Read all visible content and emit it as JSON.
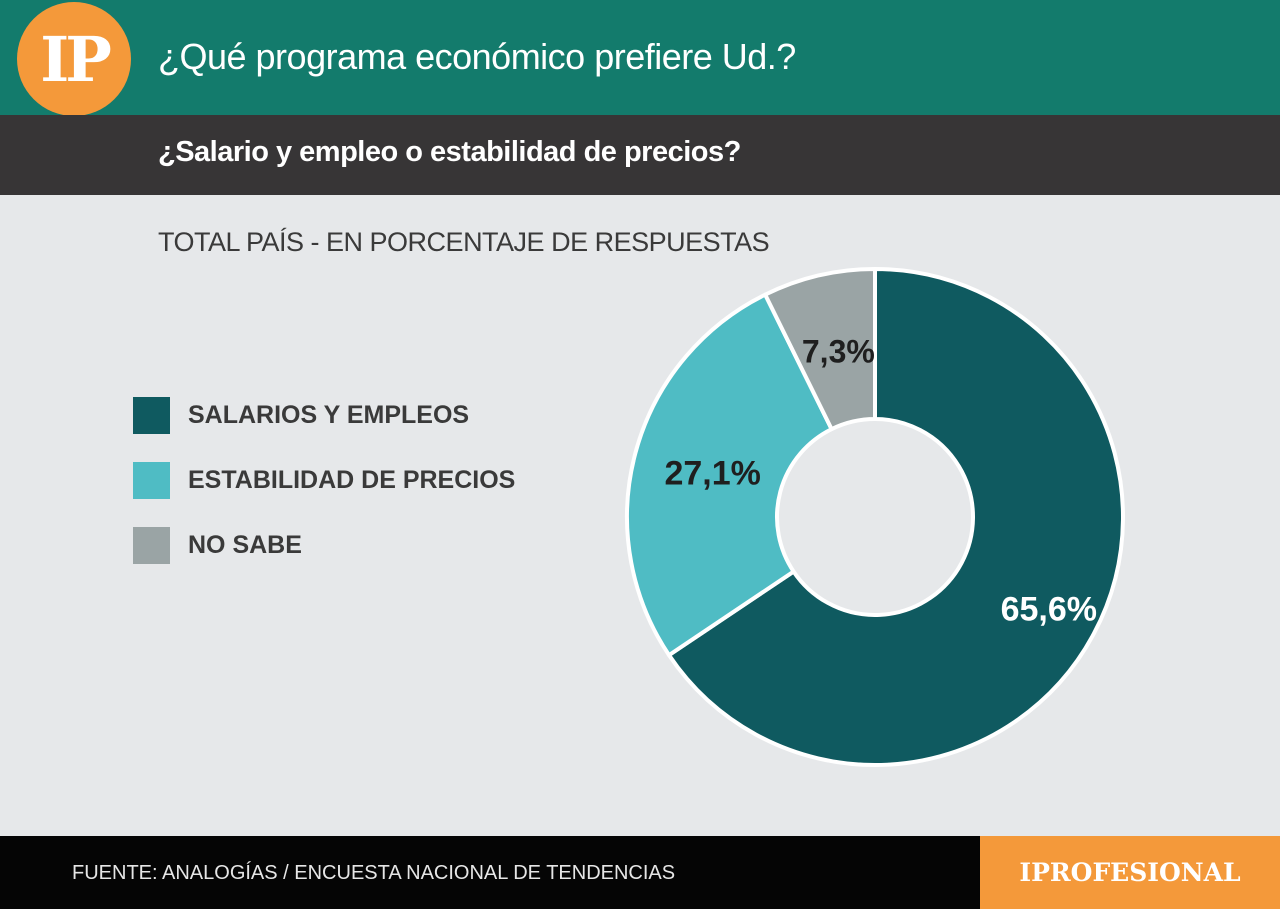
{
  "header": {
    "logo_text": "IP",
    "title": "¿Qué programa económico prefiere Ud.?",
    "subtitle": "¿Salario y empleo o estabilidad de precios?"
  },
  "chart_data": {
    "type": "pie",
    "title": "TOTAL PAÍS - EN PORCENTAJE DE RESPUESTAS",
    "donut": true,
    "legend_position": "left",
    "slices": [
      {
        "name": "SALARIOS Y EMPLEOS",
        "value": 65.6,
        "label": "65,6%",
        "color": "#0f5a60"
      },
      {
        "name": "ESTABILIDAD DE PRECIOS",
        "value": 27.1,
        "label": "27,1%",
        "color": "#4fbcc4"
      },
      {
        "name": "NO SABE",
        "value": 7.3,
        "label": "7,3%",
        "color": "#9aa4a5"
      }
    ]
  },
  "footer": {
    "source": "FUENTE: ANALOGÍAS / ENCUESTA NACIONAL DE TENDENCIAS",
    "brand": "IPROFESIONAL"
  }
}
